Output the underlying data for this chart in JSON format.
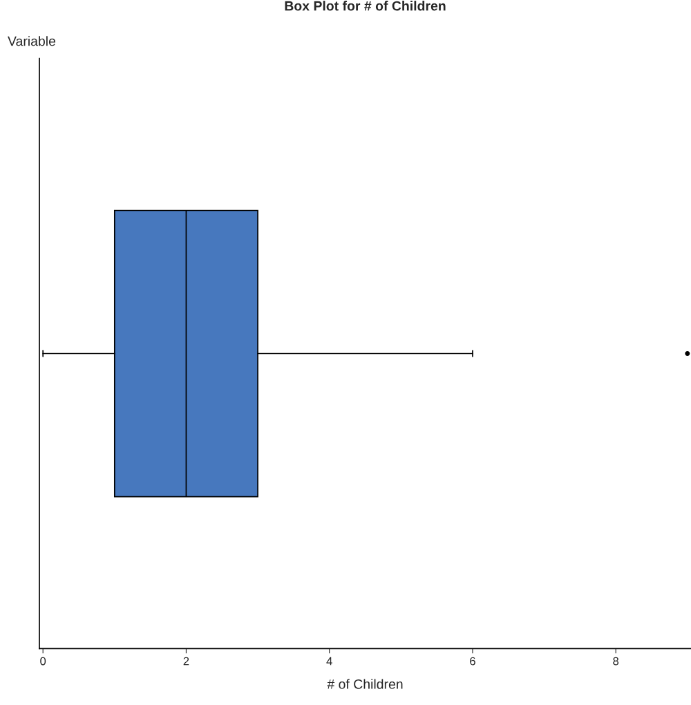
{
  "chart_data": {
    "type": "box",
    "title": "Box Plot for # of Children",
    "xlabel": "# of Children",
    "ylabel": "Variable",
    "orientation": "horizontal",
    "categories": [
      null
    ],
    "boxes": [
      {
        "low": 0,
        "q1": 1,
        "median": 2,
        "q3": 3,
        "high": 6,
        "outliers": [
          9
        ]
      }
    ],
    "color": "#4778be",
    "xlim": [
      -0.05,
      9.05
    ],
    "xticks": [
      0,
      2,
      4,
      6,
      8
    ],
    "grid": false,
    "legend": false
  }
}
